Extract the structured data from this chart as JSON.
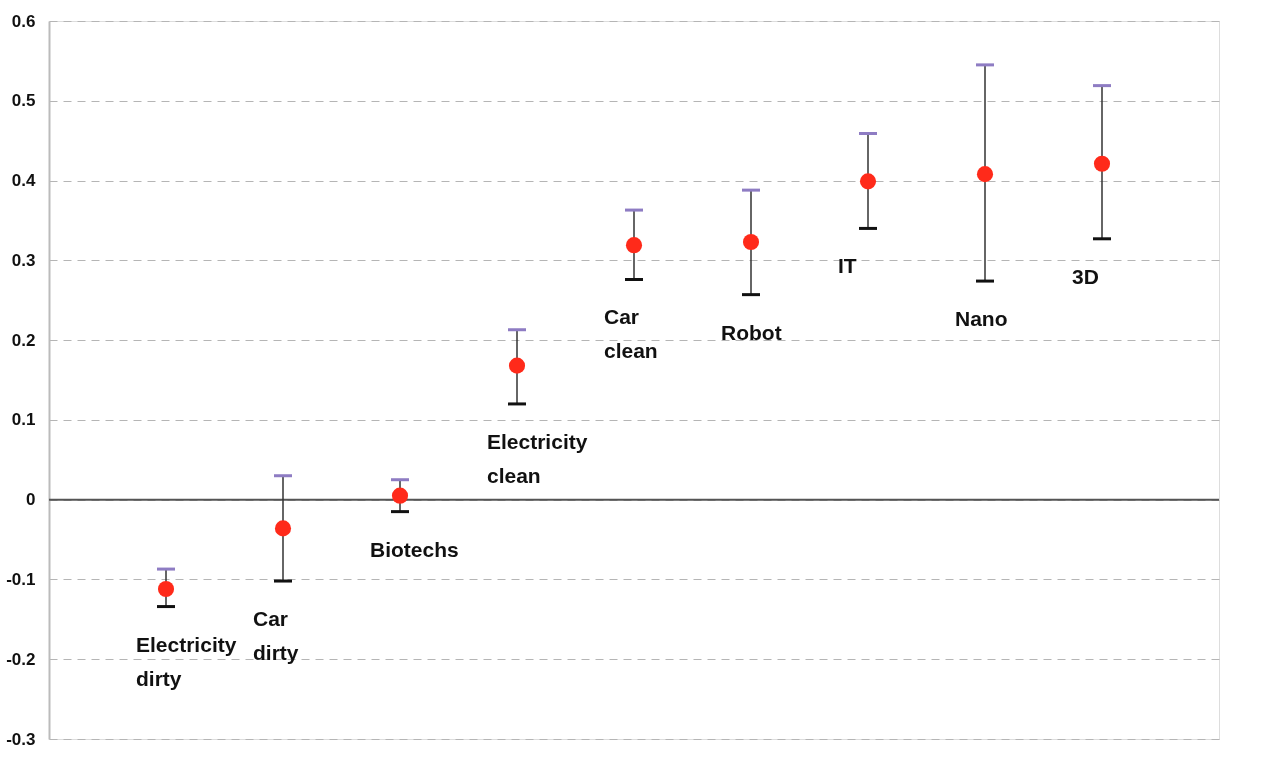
{
  "chart_data": {
    "type": "scatter",
    "categories": [
      "Electricity dirty",
      "Car dirty",
      "Biotechs",
      "Electricity clean",
      "Car clean",
      "Robot",
      "IT",
      "Nano",
      "3D"
    ],
    "series": [
      {
        "color": "#ff2a1a",
        "values": [
          -0.112,
          -0.036,
          0.005,
          0.168,
          0.319,
          0.323,
          0.399,
          0.408,
          0.421
        ],
        "errors": [
          [
            -0.134,
            -0.087
          ],
          [
            -0.102,
            0.03
          ],
          [
            -0.015,
            0.025
          ],
          [
            0.12,
            0.213
          ],
          [
            0.276,
            0.363
          ],
          [
            0.257,
            0.388
          ],
          [
            0.34,
            0.459
          ],
          [
            0.274,
            0.545
          ],
          [
            0.327,
            0.519
          ]
        ]
      }
    ],
    "ylim": [
      -0.3,
      0.6
    ],
    "yticks": [
      -0.3,
      -0.2,
      -0.1,
      0,
      0.1,
      0.2,
      0.3,
      0.4,
      0.5,
      0.6
    ],
    "grid": "y",
    "marker": "circle",
    "legend": false,
    "ref_lines": [
      {
        "axis": "y",
        "value": 0,
        "color": "#555555",
        "line_style": "solid"
      }
    ]
  }
}
